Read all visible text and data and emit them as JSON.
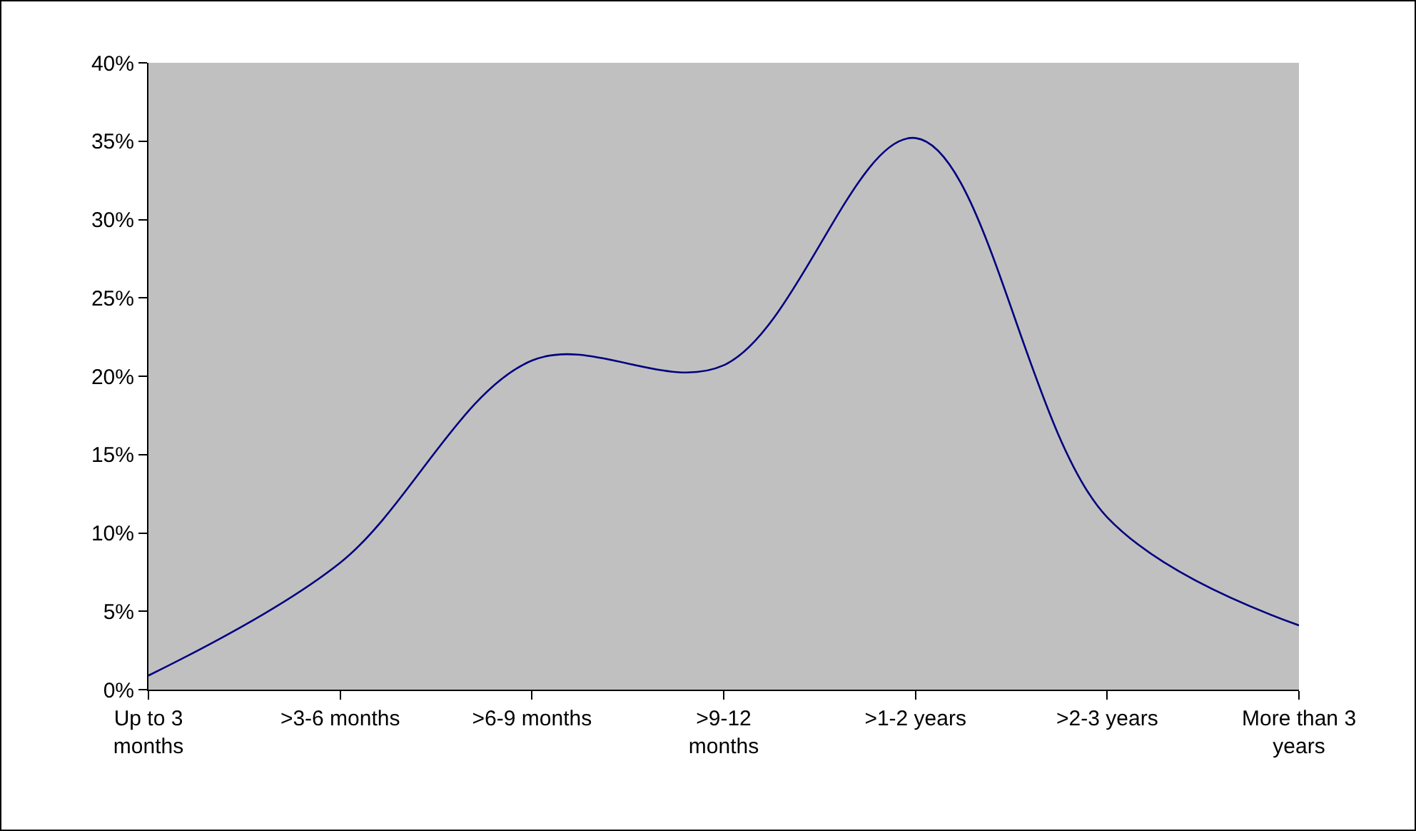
{
  "chart_data": {
    "type": "line",
    "categories": [
      "Up to 3 months",
      ">3-6 months",
      ">6-9 months",
      ">9-12 months",
      ">1-2 years",
      ">2-3 years",
      "More than 3 years"
    ],
    "series": [
      {
        "color": "#000080",
        "values": [
          0.9,
          8.1,
          21.0,
          20.7,
          35.2,
          11.0,
          4.1
        ]
      }
    ],
    "ylim": [
      0,
      40
    ],
    "yticks": [
      {
        "value": 0,
        "label": "0%"
      },
      {
        "value": 5,
        "label": "5%"
      },
      {
        "value": 10,
        "label": "10%"
      },
      {
        "value": 15,
        "label": "15%"
      },
      {
        "value": 20,
        "label": "20%"
      },
      {
        "value": 25,
        "label": "25%"
      },
      {
        "value": 30,
        "label": "30%"
      },
      {
        "value": 35,
        "label": "35%"
      },
      {
        "value": 40,
        "label": "40%"
      }
    ],
    "line_style": "solid"
  }
}
